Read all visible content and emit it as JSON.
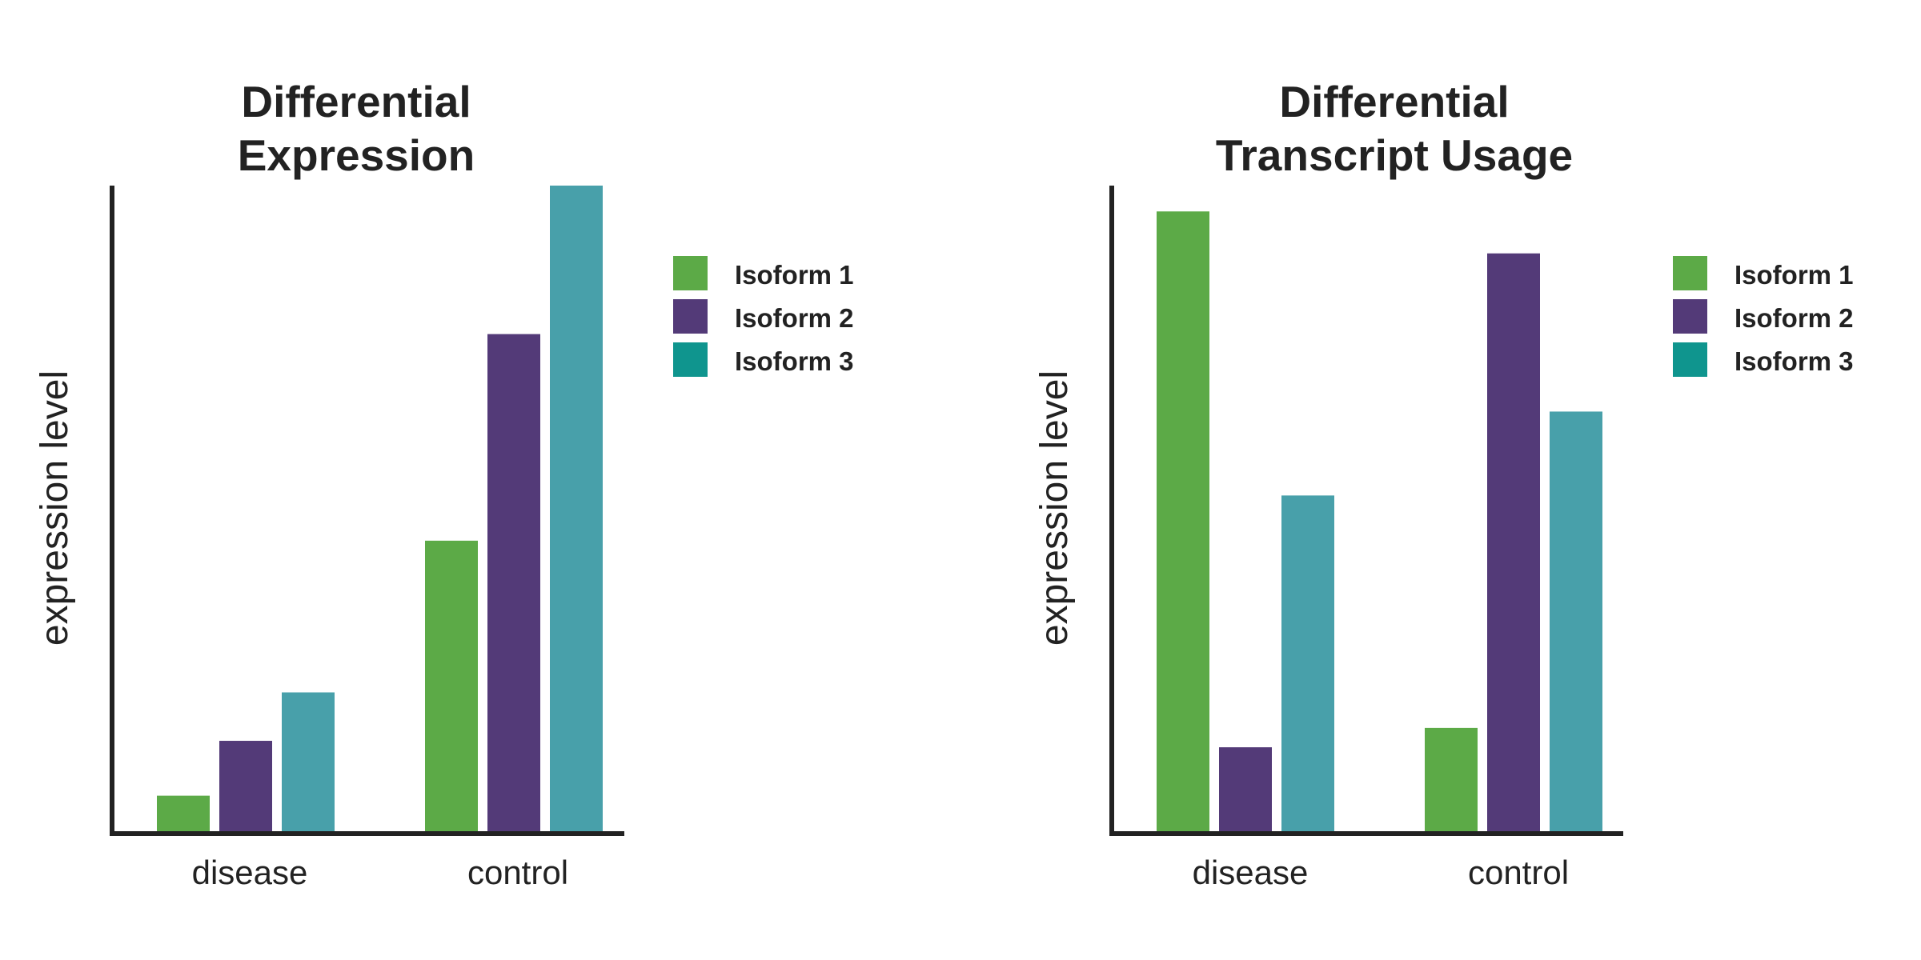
{
  "chart_data": [
    {
      "type": "bar",
      "title": [
        "Differential",
        "Expression"
      ],
      "xlabel": "",
      "ylabel": "expression level",
      "categories": [
        "disease",
        "control"
      ],
      "ylim": [
        0,
        100
      ],
      "grid": false,
      "legend_position": "top-right",
      "series": [
        {
          "name": "Isoform 1",
          "color": "#5CAA47",
          "values": [
            5.5,
            45
          ]
        },
        {
          "name": "Isoform 2",
          "color": "#533A78",
          "values": [
            14,
            77
          ]
        },
        {
          "name": "Isoform 3",
          "color": "#48A0AA",
          "values": [
            21.5,
            100
          ]
        }
      ]
    },
    {
      "type": "bar",
      "title": [
        "Differential",
        "Transcript Usage"
      ],
      "xlabel": "",
      "ylabel": "expression level",
      "categories": [
        "disease",
        "control"
      ],
      "ylim": [
        0,
        100
      ],
      "grid": false,
      "legend_position": "top-right",
      "series": [
        {
          "name": "Isoform 1",
          "color": "#5CAA47",
          "values": [
            96,
            16
          ]
        },
        {
          "name": "Isoform 2",
          "color": "#533A78",
          "values": [
            13,
            89.5
          ]
        },
        {
          "name": "Isoform 3",
          "color": "#48A0AA",
          "values": [
            52,
            65
          ]
        }
      ]
    }
  ],
  "legend_swatch_colors": [
    "#5CAA47",
    "#533A78",
    "#0F958E"
  ]
}
